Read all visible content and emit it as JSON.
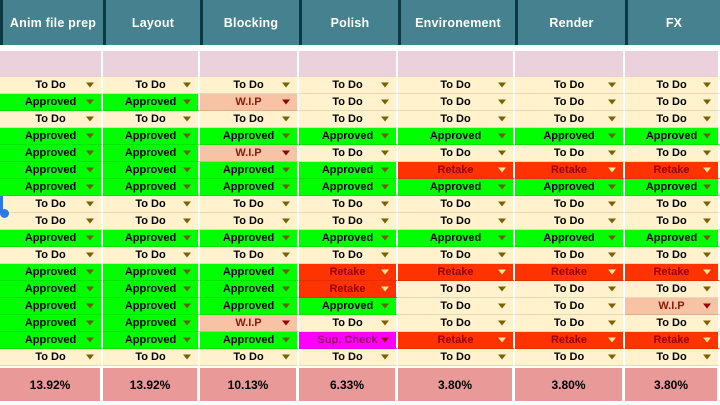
{
  "app": "shot-tracking-spreadsheet",
  "columns": [
    {
      "id": "anim-file-prep",
      "label": "Anim file prep",
      "percent": "13.92%"
    },
    {
      "id": "layout",
      "label": "Layout",
      "percent": "13.92%"
    },
    {
      "id": "blocking",
      "label": "Blocking",
      "percent": "10.13%"
    },
    {
      "id": "polish",
      "label": "Polish",
      "percent": "6.33%"
    },
    {
      "id": "environement",
      "label": "Environement",
      "percent": "3.80%"
    },
    {
      "id": "render",
      "label": "Render",
      "percent": "3.80%"
    },
    {
      "id": "fx",
      "label": "FX",
      "percent": "3.80%"
    }
  ],
  "statuses": {
    "todo": {
      "label": "To Do",
      "bg": "#fff2cc",
      "text": "#000000",
      "arrow": "#7f6000"
    },
    "approved": {
      "label": "Approved",
      "bg": "#00ff00",
      "text": "#000000",
      "arrow": "#6d5b00"
    },
    "wip": {
      "label": "W.I.P",
      "bg": "#f8c2a4",
      "text": "#85200c",
      "arrow": "#990000"
    },
    "retake": {
      "label": "Retake",
      "bg": "#ff3300",
      "text": "#990000",
      "arrow": "#ffe599"
    },
    "supcheck": {
      "label": "Sup. Check",
      "bg": "#ff00ff",
      "text": "#990066",
      "arrow": "#990000"
    }
  },
  "rows": [
    [
      "todo",
      "todo",
      "todo",
      "todo",
      "todo",
      "todo",
      "todo"
    ],
    [
      "approved",
      "approved",
      "wip",
      "todo",
      "todo",
      "todo",
      "todo"
    ],
    [
      "todo",
      "todo",
      "todo",
      "todo",
      "todo",
      "todo",
      "todo"
    ],
    [
      "approved",
      "approved",
      "approved",
      "approved",
      "approved",
      "approved",
      "approved"
    ],
    [
      "approved",
      "approved",
      "wip",
      "todo",
      "todo",
      "todo",
      "todo"
    ],
    [
      "approved",
      "approved",
      "approved",
      "approved",
      "retake",
      "retake",
      "retake"
    ],
    [
      "approved",
      "approved",
      "approved",
      "approved",
      "approved",
      "approved",
      "approved"
    ],
    [
      "todo",
      "todo",
      "todo",
      "todo",
      "todo",
      "todo",
      "todo"
    ],
    [
      "todo",
      "todo",
      "todo",
      "todo",
      "todo",
      "todo",
      "todo"
    ],
    [
      "approved",
      "approved",
      "approved",
      "approved",
      "approved",
      "approved",
      "approved"
    ],
    [
      "todo",
      "todo",
      "todo",
      "todo",
      "todo",
      "todo",
      "todo"
    ],
    [
      "approved",
      "approved",
      "approved",
      "retake",
      "retake",
      "retake",
      "retake"
    ],
    [
      "approved",
      "approved",
      "approved",
      "retake",
      "todo",
      "todo",
      "todo"
    ],
    [
      "approved",
      "approved",
      "approved",
      "approved",
      "todo",
      "todo",
      "wip"
    ],
    [
      "approved",
      "approved",
      "wip",
      "todo",
      "todo",
      "todo",
      "todo"
    ],
    [
      "approved",
      "approved",
      "approved",
      "supcheck",
      "retake",
      "retake",
      "retake"
    ],
    [
      "todo",
      "todo",
      "todo",
      "todo",
      "todo",
      "todo",
      "todo"
    ]
  ],
  "colors": {
    "header_bg": "#45818e",
    "header_text": "#ffffff",
    "header_divider": "#0c3944",
    "frozen_row_bg": "#ead1dc",
    "footer_bg": "#ea9999",
    "selection_blue": "#2b78e4",
    "gridline": "#ffffff"
  },
  "selection": {
    "row_index": 8,
    "column_index": 1
  }
}
